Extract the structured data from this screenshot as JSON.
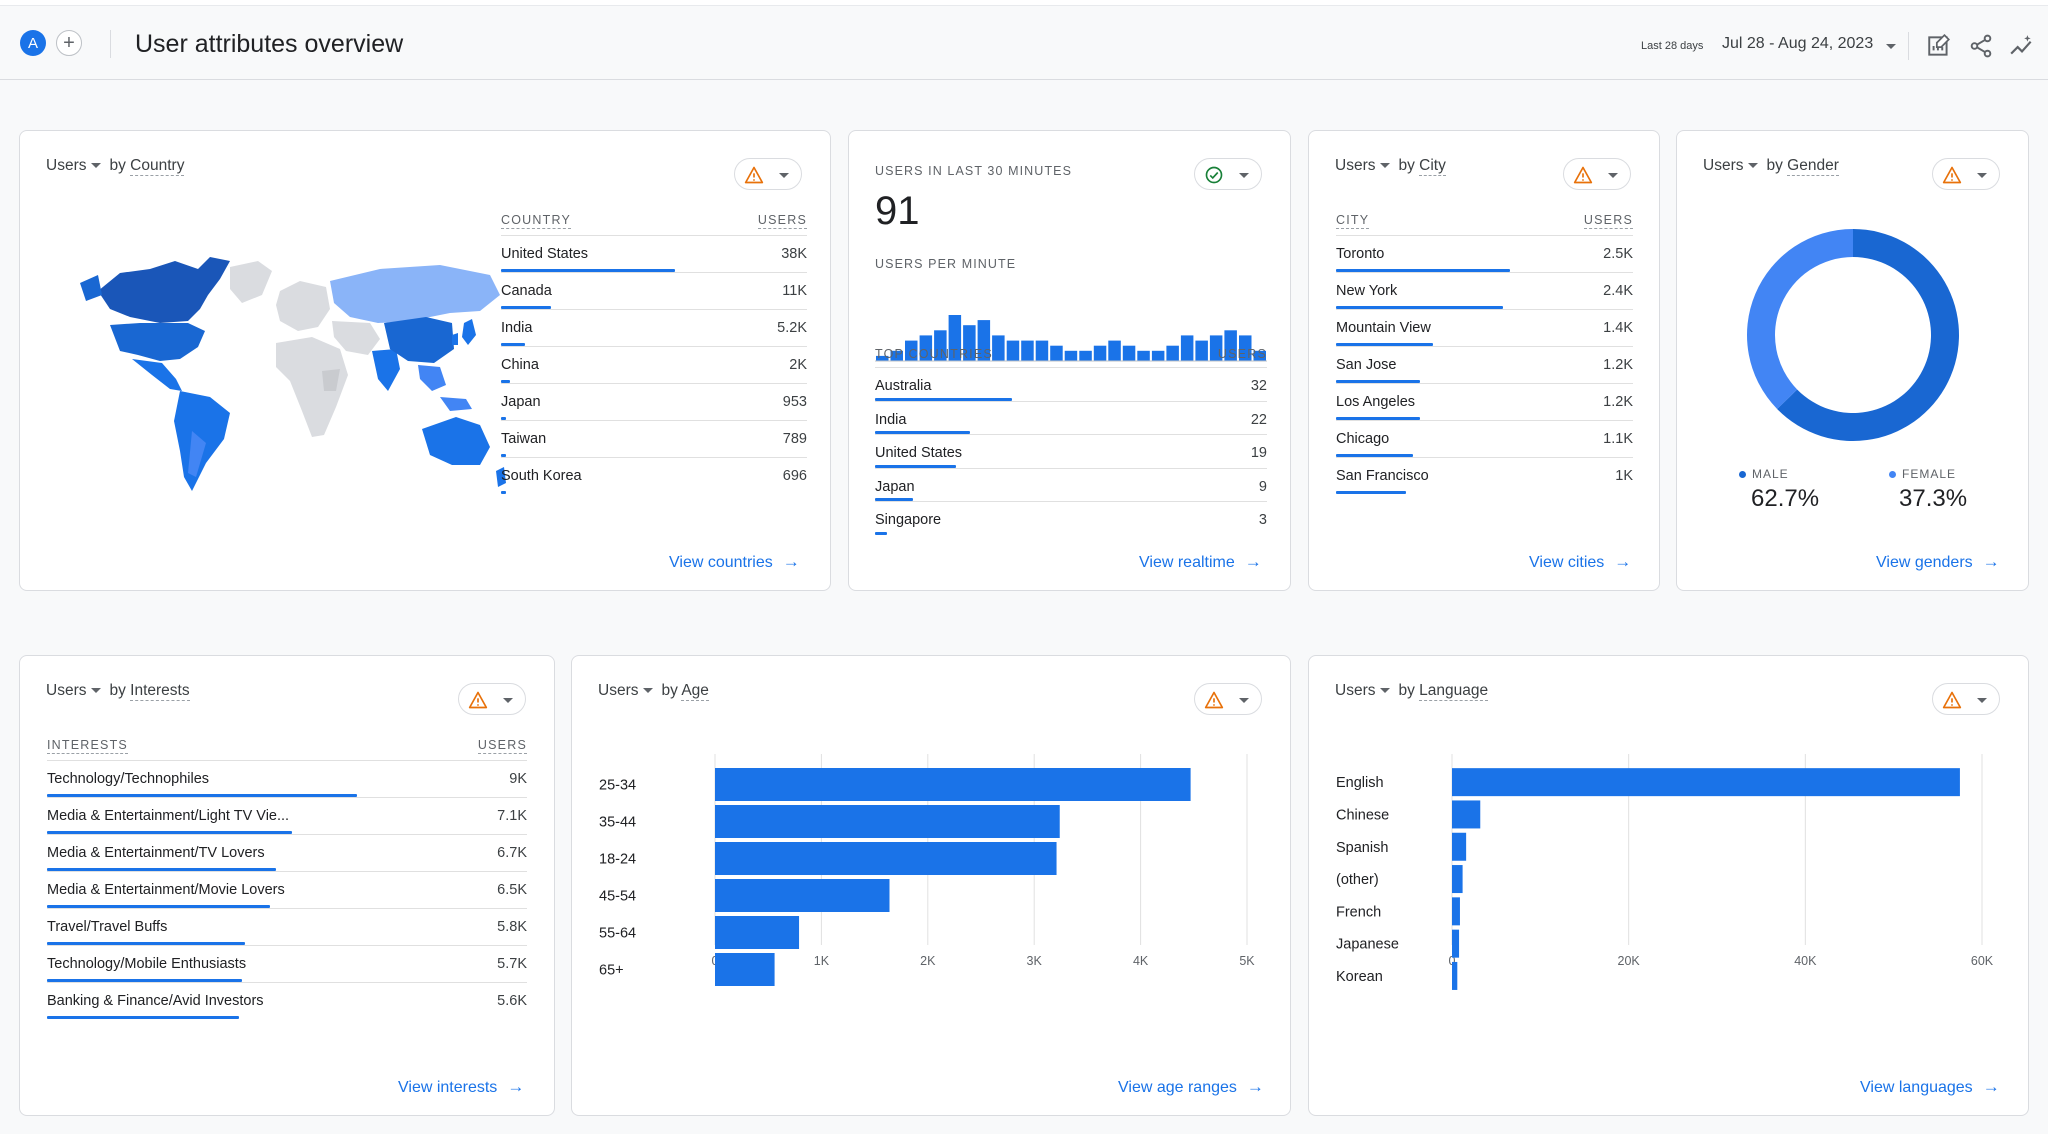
{
  "header": {
    "avatar_letter": "A",
    "add_symbol": "+",
    "title": "User attributes overview",
    "range_label": "Last 28 days",
    "date_range": "Jul 28 - Aug 24, 2023",
    "icons": [
      "customize-report-icon",
      "share-icon",
      "insights-icon"
    ]
  },
  "colors": {
    "accent": "#1a73e8",
    "accent_light": "#8ab4f8",
    "warning": "#e8710a",
    "ok": "#188038"
  },
  "country_card": {
    "metric": "Users",
    "dimension": "Country",
    "col_label": "COUNTRY",
    "col_value": "USERS",
    "rows": [
      {
        "label": "United States",
        "value": "38K",
        "fraction": 1.0
      },
      {
        "label": "Canada",
        "value": "11K",
        "fraction": 0.29
      },
      {
        "label": "India",
        "value": "5.2K",
        "fraction": 0.14
      },
      {
        "label": "China",
        "value": "2K",
        "fraction": 0.05
      },
      {
        "label": "Japan",
        "value": "953",
        "fraction": 0.025
      },
      {
        "label": "Taiwan",
        "value": "789",
        "fraction": 0.021
      },
      {
        "label": "South Korea",
        "value": "696",
        "fraction": 0.018
      }
    ],
    "link": "View countries",
    "status": "warning"
  },
  "realtime_card": {
    "heading": "USERS IN LAST 30 MINUTES",
    "count": "91",
    "per_minute_label": "USERS PER MINUTE",
    "col_label": "TOP COUNTRIES",
    "col_value": "USERS",
    "per_minute": [
      1,
      2,
      4,
      5,
      6,
      9,
      7,
      8,
      5,
      4,
      4,
      4,
      3,
      2,
      2,
      3,
      4,
      3,
      2,
      2,
      3,
      5,
      4,
      5,
      6,
      5,
      2
    ],
    "rows": [
      {
        "label": "Australia",
        "value": "32",
        "fraction": 1.0
      },
      {
        "label": "India",
        "value": "22",
        "fraction": 0.69
      },
      {
        "label": "United States",
        "value": "19",
        "fraction": 0.59
      },
      {
        "label": "Japan",
        "value": "9",
        "fraction": 0.28
      },
      {
        "label": "Singapore",
        "value": "3",
        "fraction": 0.09
      }
    ],
    "link": "View realtime",
    "status": "ok"
  },
  "city_card": {
    "metric": "Users",
    "dimension": "City",
    "col_label": "CITY",
    "col_value": "USERS",
    "rows": [
      {
        "label": "Toronto",
        "value": "2.5K",
        "fraction": 1.0
      },
      {
        "label": "New York",
        "value": "2.4K",
        "fraction": 0.96
      },
      {
        "label": "Mountain View",
        "value": "1.4K",
        "fraction": 0.56
      },
      {
        "label": "San Jose",
        "value": "1.2K",
        "fraction": 0.48
      },
      {
        "label": "Los Angeles",
        "value": "1.2K",
        "fraction": 0.48
      },
      {
        "label": "Chicago",
        "value": "1.1K",
        "fraction": 0.44
      },
      {
        "label": "San Francisco",
        "value": "1K",
        "fraction": 0.4
      }
    ],
    "link": "View cities",
    "status": "warning"
  },
  "gender_card": {
    "metric": "Users",
    "dimension": "Gender",
    "male_label": "MALE",
    "male_value": "62.7%",
    "male_fraction": 0.627,
    "female_label": "FEMALE",
    "female_value": "37.3%",
    "female_fraction": 0.373,
    "male_color": "#1967d2",
    "female_color": "#4285f4",
    "link": "View genders",
    "status": "warning"
  },
  "interests_card": {
    "metric": "Users",
    "dimension": "Interests",
    "col_label": "INTERESTS",
    "col_value": "USERS",
    "rows": [
      {
        "label": "Technology/Technophiles",
        "value": "9K",
        "fraction": 1.0
      },
      {
        "label": "Media & Entertainment/Light TV Vie...",
        "value": "7.1K",
        "fraction": 0.79
      },
      {
        "label": "Media & Entertainment/TV Lovers",
        "value": "6.7K",
        "fraction": 0.74
      },
      {
        "label": "Media & Entertainment/Movie Lovers",
        "value": "6.5K",
        "fraction": 0.72
      },
      {
        "label": "Travel/Travel Buffs",
        "value": "5.8K",
        "fraction": 0.64
      },
      {
        "label": "Technology/Mobile Enthusiasts",
        "value": "5.7K",
        "fraction": 0.63
      },
      {
        "label": "Banking & Finance/Avid Investors",
        "value": "5.6K",
        "fraction": 0.62
      }
    ],
    "link": "View interests",
    "status": "warning"
  },
  "age_card": {
    "metric": "Users",
    "dimension": "Age",
    "link": "View age ranges",
    "status": "warning"
  },
  "language_card": {
    "metric": "Users",
    "dimension": "Language",
    "link": "View languages",
    "status": "warning"
  },
  "chart_data": [
    {
      "type": "bar",
      "orientation": "horizontal",
      "categories": [
        "25-34",
        "35-44",
        "18-24",
        "45-54",
        "55-64",
        "65+"
      ],
      "values": [
        4470,
        3240,
        3210,
        1640,
        790,
        560
      ],
      "xlim": [
        0,
        5000
      ],
      "ticks": [
        0,
        1000,
        2000,
        3000,
        4000,
        5000
      ],
      "tick_labels": [
        "0",
        "1K",
        "2K",
        "3K",
        "4K",
        "5K"
      ],
      "grid": true
    },
    {
      "type": "bar",
      "orientation": "horizontal",
      "categories": [
        "English",
        "Chinese",
        "Spanish",
        "(other)",
        "French",
        "Japanese",
        "Korean"
      ],
      "values": [
        57500,
        3200,
        1600,
        1200,
        900,
        800,
        600
      ],
      "xlim": [
        0,
        60000
      ],
      "ticks": [
        0,
        20000,
        40000,
        60000
      ],
      "tick_labels": [
        "0",
        "20K",
        "40K",
        "60K"
      ],
      "grid": true
    }
  ]
}
